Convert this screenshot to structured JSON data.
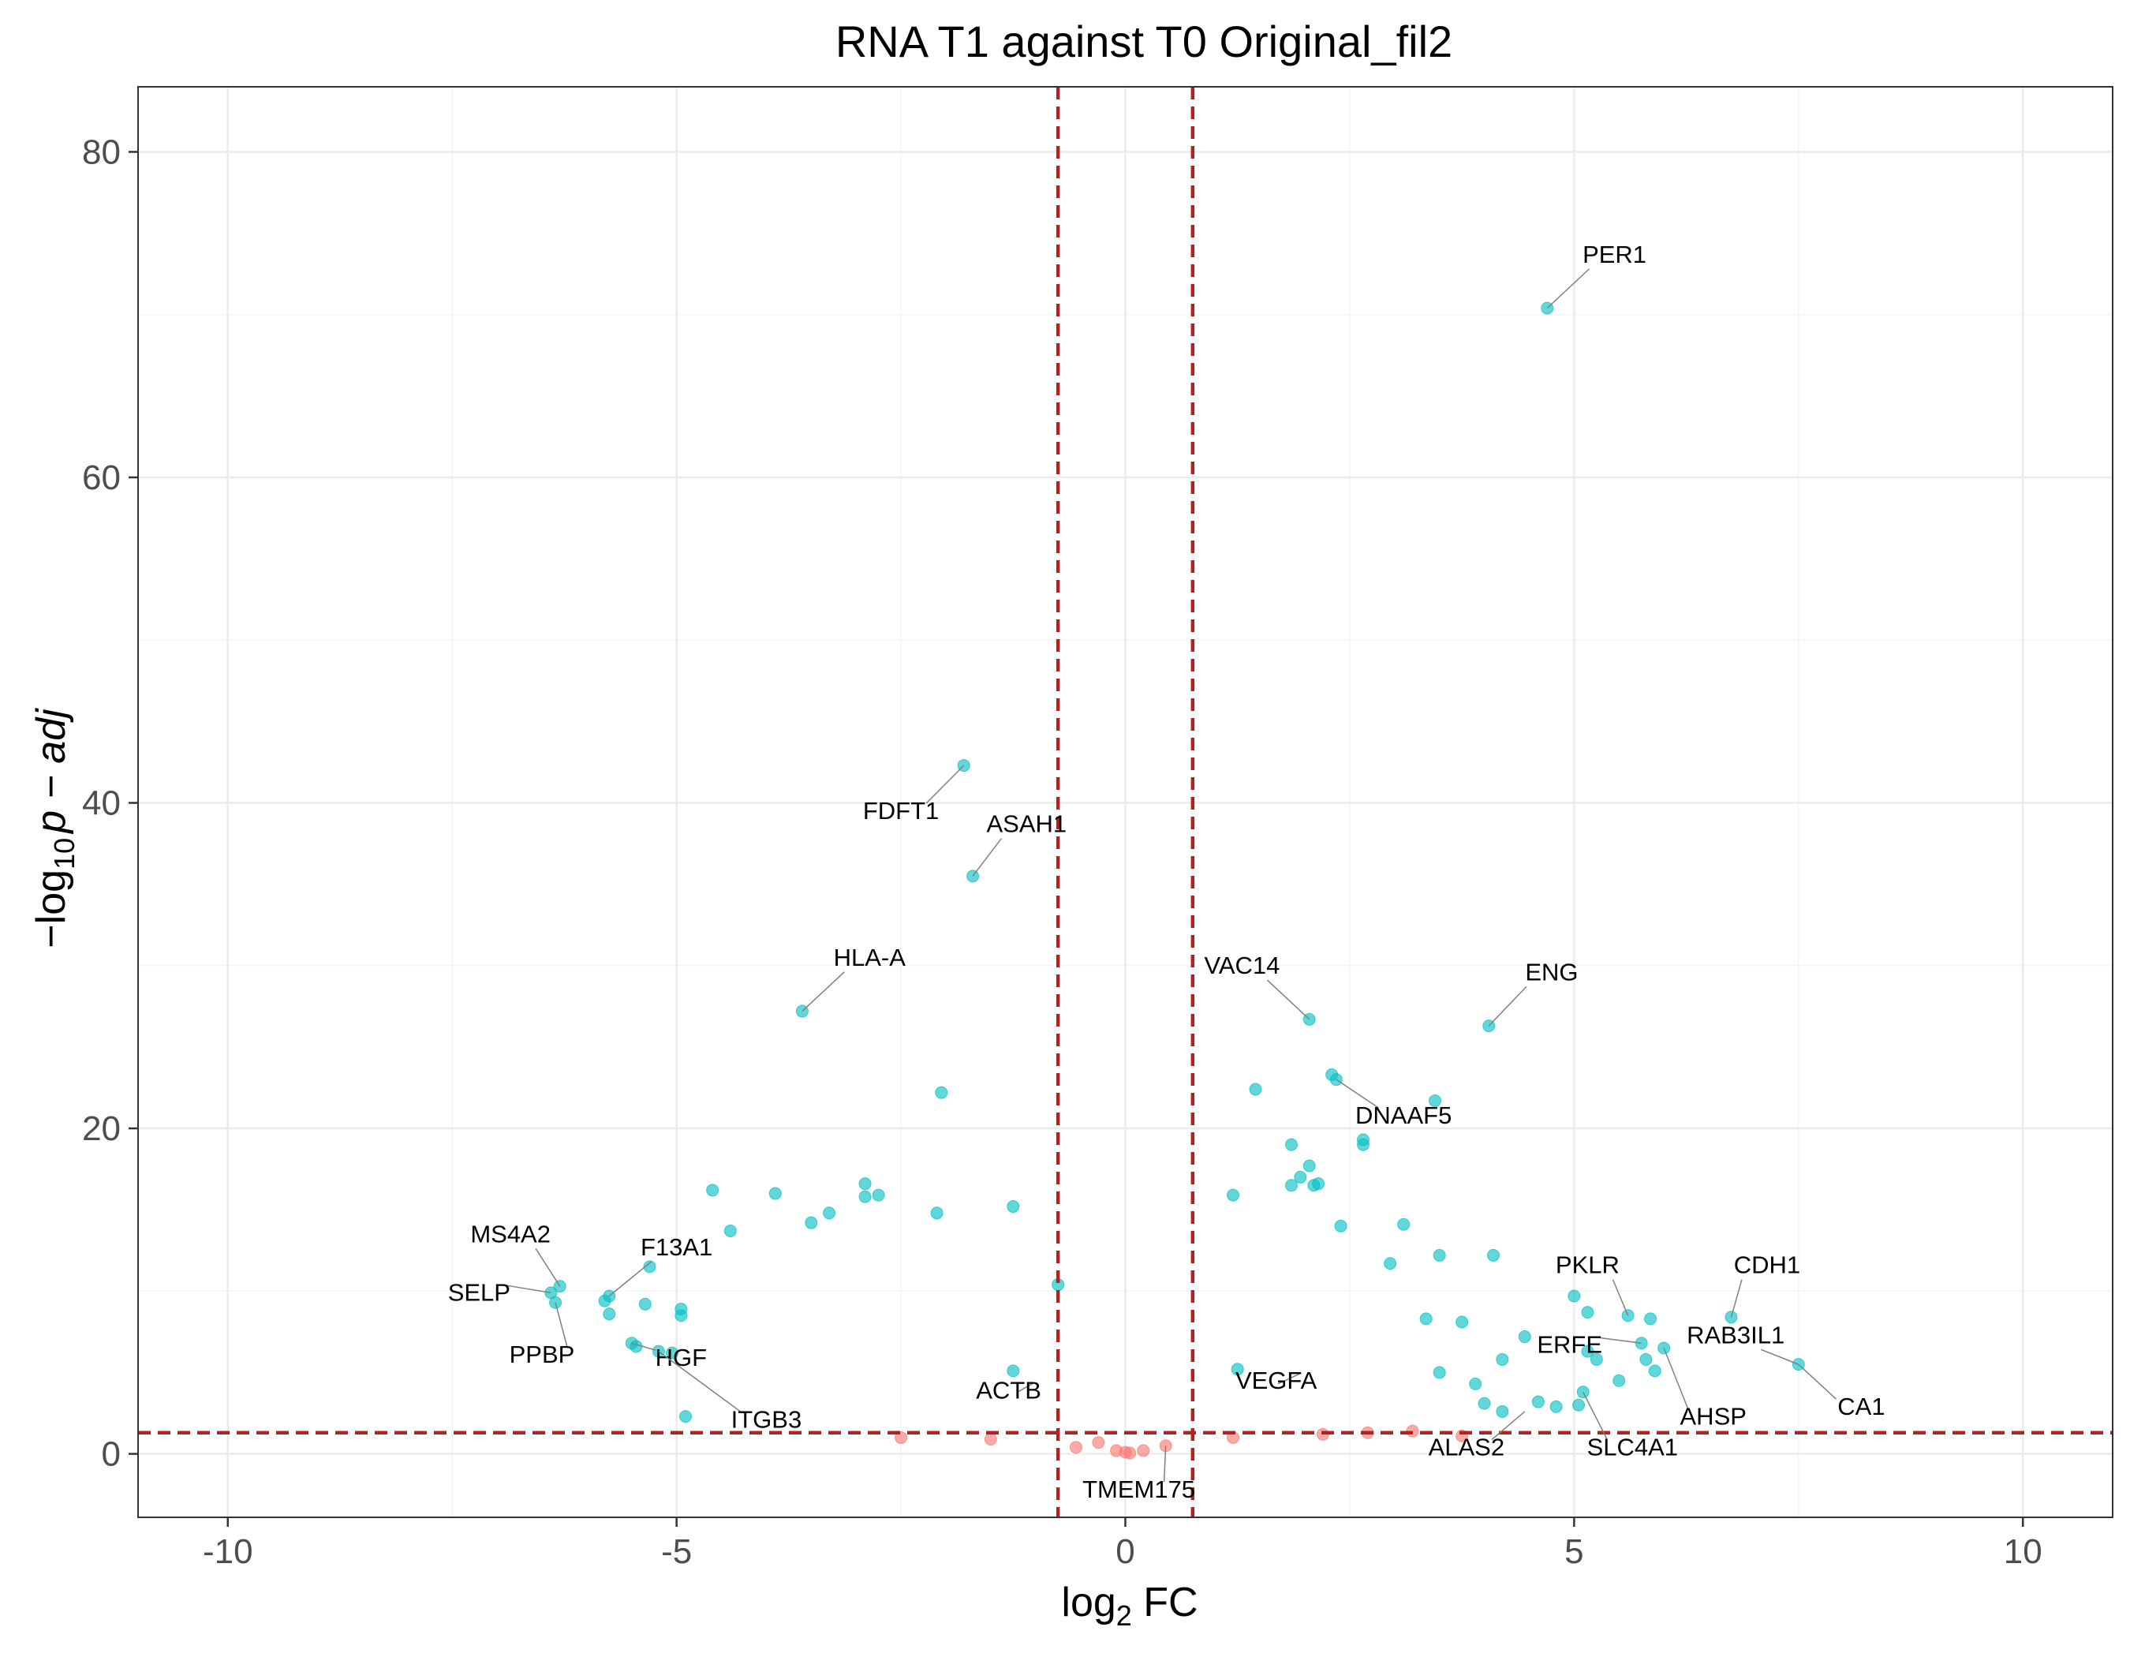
{
  "chart_data": {
    "type": "scatter",
    "title": "RNA T1 against T0 Original_fil2",
    "xlabel": {
      "base": "log",
      "sub": "2",
      "rest": " FC"
    },
    "ylabel": {
      "minus": "−",
      "base": "log",
      "sub": "10",
      "italic": "p − adj"
    },
    "xlim": [
      -11,
      11
    ],
    "ylim": [
      -3.9,
      84
    ],
    "x_ticks": [
      -10,
      -5,
      0,
      5,
      10
    ],
    "y_ticks": [
      0,
      20,
      40,
      60,
      80
    ],
    "x_tick_labels": [
      "-10",
      "-5",
      "0",
      "5",
      "10"
    ],
    "y_tick_labels": [
      "0",
      "20",
      "40",
      "60",
      "80"
    ],
    "grid": true,
    "thresholds": {
      "log2fc": 0.75,
      "neg_log10_padj": 1.3
    },
    "colors": {
      "significant": "#00BFC4",
      "not_significant": "#F8766D",
      "threshold_line": "#B22222",
      "panel_border": "#333333",
      "grid_major": "#EBEBEB",
      "grid_minor": "#F4F4F4"
    },
    "series": [
      {
        "name": "",
        "color": "#00BFC4",
        "points": [
          [
            4.7,
            70.4
          ],
          [
            -1.8,
            42.3
          ],
          [
            -1.7,
            35.5
          ],
          [
            -3.6,
            27.2
          ],
          [
            2.05,
            26.7
          ],
          [
            4.05,
            26.3
          ],
          [
            -2.05,
            22.2
          ],
          [
            1.45,
            22.4
          ],
          [
            2.3,
            23.3
          ],
          [
            2.35,
            23.0
          ],
          [
            3.45,
            21.7
          ],
          [
            2.65,
            19.0
          ],
          [
            2.65,
            19.3
          ],
          [
            1.85,
            19.0
          ],
          [
            2.05,
            17.7
          ],
          [
            2.15,
            16.6
          ],
          [
            2.1,
            16.5
          ],
          [
            1.95,
            17.0
          ],
          [
            -2.9,
            16.6
          ],
          [
            -2.9,
            15.8
          ],
          [
            -2.75,
            15.9
          ],
          [
            -2.1,
            14.8
          ],
          [
            1.2,
            15.9
          ],
          [
            1.85,
            16.5
          ],
          [
            -4.6,
            16.2
          ],
          [
            -3.9,
            16.0
          ],
          [
            -3.3,
            14.8
          ],
          [
            -1.25,
            15.2
          ],
          [
            3.1,
            14.1
          ],
          [
            2.4,
            14.0
          ],
          [
            -3.5,
            14.2
          ],
          [
            -4.4,
            13.7
          ],
          [
            3.5,
            12.2
          ],
          [
            4.1,
            12.2
          ],
          [
            -6.3,
            10.3
          ],
          [
            -6.4,
            9.9
          ],
          [
            -6.35,
            9.3
          ],
          [
            -5.3,
            11.5
          ],
          [
            -5.75,
            9.7
          ],
          [
            -5.8,
            9.4
          ],
          [
            -5.75,
            8.6
          ],
          [
            -5.35,
            9.2
          ],
          [
            -5.5,
            6.8
          ],
          [
            -5.45,
            6.6
          ],
          [
            -5.2,
            6.3
          ],
          [
            -5.05,
            6.2
          ],
          [
            -4.95,
            8.9
          ],
          [
            -4.95,
            8.5
          ],
          [
            -4.9,
            2.3
          ],
          [
            5.85,
            8.3
          ],
          [
            6.75,
            8.4
          ],
          [
            5.6,
            8.5
          ],
          [
            5.15,
            8.7
          ],
          [
            5.0,
            9.7
          ],
          [
            4.45,
            7.2
          ],
          [
            5.75,
            6.8
          ],
          [
            6.0,
            6.5
          ],
          [
            5.8,
            5.8
          ],
          [
            5.9,
            5.1
          ],
          [
            7.5,
            5.5
          ],
          [
            5.25,
            5.8
          ],
          [
            5.15,
            6.3
          ],
          [
            5.5,
            4.5
          ],
          [
            5.1,
            3.8
          ],
          [
            5.05,
            3.0
          ],
          [
            4.6,
            3.2
          ],
          [
            4.8,
            2.9
          ],
          [
            4.2,
            2.6
          ],
          [
            4.0,
            3.1
          ],
          [
            3.35,
            8.3
          ],
          [
            3.75,
            8.1
          ],
          [
            4.2,
            5.8
          ],
          [
            3.5,
            5.0
          ],
          [
            3.9,
            4.3
          ],
          [
            2.95,
            11.7
          ],
          [
            1.25,
            5.2
          ],
          [
            -1.25,
            5.1
          ],
          [
            -0.75,
            10.4
          ]
        ]
      },
      {
        "name": "",
        "color": "#F8766D",
        "points": [
          [
            -0.55,
            0.4
          ],
          [
            0.45,
            0.5
          ],
          [
            -0.3,
            0.7
          ],
          [
            0.2,
            0.2
          ],
          [
            1.2,
            1.0
          ],
          [
            2.2,
            1.2
          ],
          [
            2.7,
            1.3
          ],
          [
            3.2,
            1.4
          ],
          [
            -1.5,
            0.9
          ],
          [
            -2.5,
            1.0
          ],
          [
            3.75,
            1.1
          ],
          [
            0.0,
            0.1
          ],
          [
            0.05,
            0.05
          ],
          [
            -0.1,
            0.2
          ]
        ]
      }
    ],
    "labels": [
      {
        "text": "PER1",
        "point": [
          4.7,
          70.4
        ],
        "at": [
          5.45,
          73.2
        ]
      },
      {
        "text": "FDFT1",
        "point": [
          -1.8,
          42.3
        ],
        "at": [
          -2.5,
          39.0
        ]
      },
      {
        "text": "ASAH1",
        "point": [
          -1.7,
          35.5
        ],
        "at": [
          -1.1,
          38.2
        ]
      },
      {
        "text": "HLA-A",
        "point": [
          -3.6,
          27.2
        ],
        "at": [
          -2.85,
          30.0
        ]
      },
      {
        "text": "VAC14",
        "point": [
          2.05,
          26.7
        ],
        "at": [
          1.3,
          29.5
        ]
      },
      {
        "text": "ENG",
        "point": [
          4.05,
          26.3
        ],
        "at": [
          4.75,
          29.1
        ]
      },
      {
        "text": "DNAAF5",
        "point": [
          2.35,
          23.0
        ],
        "at": [
          3.1,
          20.3
        ]
      },
      {
        "text": "MS4A2",
        "point": [
          -6.3,
          10.3
        ],
        "at": [
          -6.85,
          13.0
        ]
      },
      {
        "text": "F13A1",
        "point": [
          -5.75,
          9.7
        ],
        "at": [
          -5.0,
          12.2
        ]
      },
      {
        "text": "SELP",
        "point": [
          -6.4,
          9.9
        ],
        "at": [
          -7.2,
          9.4
        ]
      },
      {
        "text": "PPBP",
        "point": [
          -6.35,
          9.3
        ],
        "at": [
          -6.5,
          5.6
        ]
      },
      {
        "text": "HGF",
        "point": [
          -5.5,
          6.8
        ],
        "at": [
          -4.95,
          5.4
        ]
      },
      {
        "text": "ITGB3",
        "point": [
          -5.2,
          6.3
        ],
        "at": [
          -4.0,
          1.6
        ]
      },
      {
        "text": "ACTB",
        "point": [
          -1.2,
          3.8
        ],
        "at": [
          -1.3,
          3.4
        ]
      },
      {
        "text": "VEGFA",
        "point": [
          1.7,
          4.3
        ],
        "at": [
          1.68,
          4.0
        ]
      },
      {
        "text": "TMEM175",
        "point": [
          0.45,
          0.5
        ],
        "at": [
          0.15,
          -2.7
        ]
      },
      {
        "text": "PKLR",
        "point": [
          5.6,
          8.5
        ],
        "at": [
          5.15,
          11.1
        ]
      },
      {
        "text": "CDH1",
        "point": [
          6.75,
          8.4
        ],
        "at": [
          7.15,
          11.1
        ]
      },
      {
        "text": "ERFE",
        "point": [
          5.75,
          6.8
        ],
        "at": [
          4.95,
          6.2
        ]
      },
      {
        "text": "RAB3IL1",
        "point": [
          7.5,
          5.5
        ],
        "at": [
          6.8,
          6.8
        ]
      },
      {
        "text": "AHSP",
        "point": [
          6.0,
          6.5
        ],
        "at": [
          6.55,
          1.8
        ]
      },
      {
        "text": "CA1",
        "point": [
          7.5,
          5.5
        ],
        "at": [
          8.2,
          2.4
        ]
      },
      {
        "text": "ALAS2",
        "point": [
          4.45,
          2.6
        ],
        "at": [
          3.8,
          -0.1
        ]
      },
      {
        "text": "SLC4A1",
        "point": [
          5.1,
          3.8
        ],
        "at": [
          5.65,
          -0.1
        ]
      }
    ]
  }
}
